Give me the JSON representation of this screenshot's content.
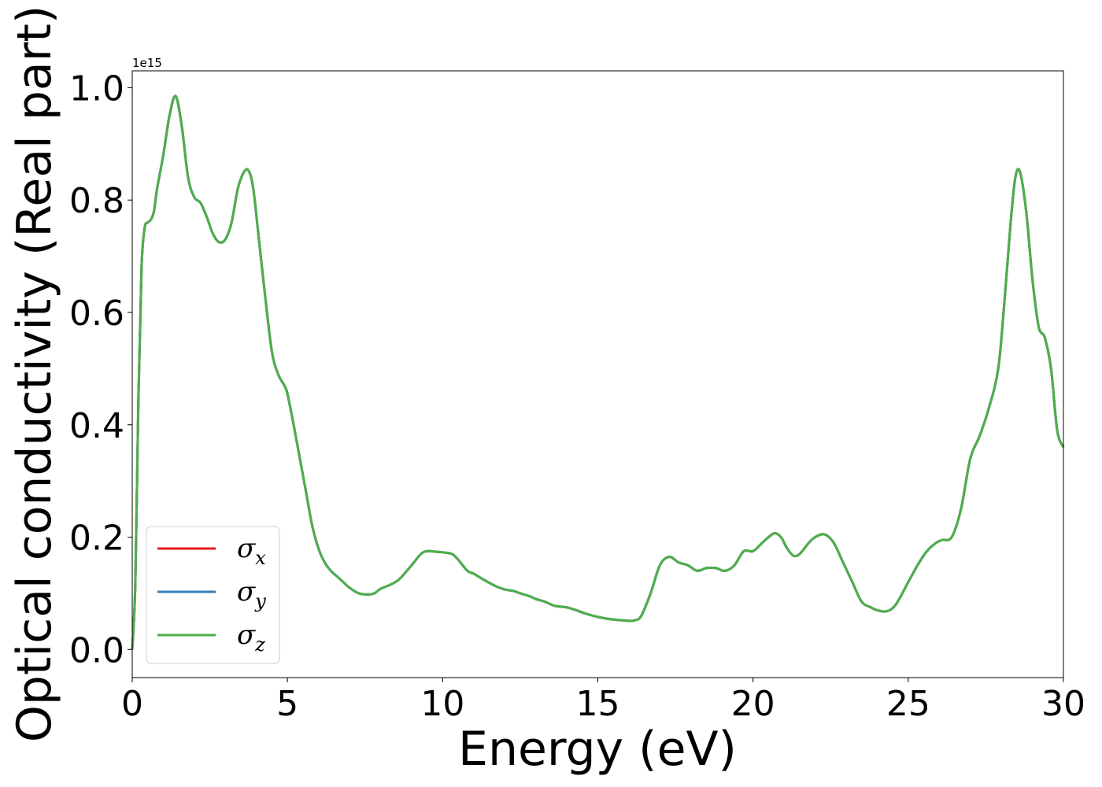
{
  "chart_data": {
    "type": "line",
    "xlabel": "Energy (eV)",
    "ylabel": "Optical conductivity (Real part)",
    "y_multiplier_label": "1e15",
    "xlim": [
      0,
      30
    ],
    "ylim": [
      -0.05,
      1.03
    ],
    "x_ticks": [
      0,
      5,
      10,
      15,
      20,
      25,
      30
    ],
    "x_tick_labels": [
      "0",
      "5",
      "10",
      "15",
      "20",
      "25",
      "30"
    ],
    "y_ticks": [
      0.0,
      0.2,
      0.4,
      0.6,
      0.8,
      1.0
    ],
    "y_tick_labels": [
      "0.0",
      "0.2",
      "0.4",
      "0.6",
      "0.8",
      "1.0"
    ],
    "grid": false,
    "legend_position": "lower-left",
    "x": [
      0,
      0.1,
      0.2,
      0.3,
      0.4,
      0.5,
      0.6,
      0.7,
      0.8,
      1.0,
      1.2,
      1.4,
      1.6,
      1.8,
      2.0,
      2.2,
      2.4,
      2.6,
      2.8,
      3.0,
      3.2,
      3.4,
      3.6,
      3.75,
      3.9,
      4.1,
      4.3,
      4.5,
      4.7,
      4.9,
      5.0,
      5.2,
      5.4,
      5.6,
      5.8,
      6.0,
      6.2,
      6.4,
      6.6,
      6.8,
      7.0,
      7.3,
      7.6,
      7.8,
      8.0,
      8.3,
      8.6,
      9.0,
      9.3,
      9.5,
      9.8,
      10.0,
      10.3,
      10.5,
      10.8,
      11.0,
      11.3,
      11.7,
      12.0,
      12.3,
      12.5,
      12.8,
      13.0,
      13.3,
      13.6,
      14.0,
      14.3,
      14.6,
      15.0,
      15.4,
      15.8,
      16.0,
      16.2,
      16.4,
      16.7,
      17.0,
      17.3,
      17.6,
      17.9,
      18.2,
      18.5,
      18.8,
      19.1,
      19.4,
      19.7,
      20.0,
      20.3,
      20.5,
      20.7,
      20.9,
      21.1,
      21.3,
      21.5,
      21.8,
      22.0,
      22.3,
      22.6,
      22.9,
      23.2,
      23.5,
      23.8,
      24.0,
      24.3,
      24.6,
      25.0,
      25.3,
      25.6,
      25.9,
      26.1,
      26.4,
      26.7,
      27.0,
      27.3,
      27.6,
      27.9,
      28.1,
      28.3,
      28.45,
      28.6,
      28.8,
      29.0,
      29.2,
      29.4,
      29.6,
      29.8,
      30.0
    ],
    "series": [
      {
        "name": "σx",
        "color": "#e41a1c",
        "values": [
          0.0,
          0.12,
          0.45,
          0.68,
          0.75,
          0.76,
          0.765,
          0.78,
          0.82,
          0.88,
          0.95,
          0.985,
          0.93,
          0.84,
          0.805,
          0.795,
          0.77,
          0.74,
          0.725,
          0.73,
          0.76,
          0.82,
          0.85,
          0.852,
          0.82,
          0.72,
          0.62,
          0.53,
          0.49,
          0.47,
          0.455,
          0.4,
          0.34,
          0.28,
          0.22,
          0.18,
          0.155,
          0.14,
          0.13,
          0.12,
          0.11,
          0.1,
          0.098,
          0.1,
          0.108,
          0.115,
          0.125,
          0.15,
          0.17,
          0.175,
          0.174,
          0.173,
          0.17,
          0.16,
          0.14,
          0.135,
          0.125,
          0.113,
          0.107,
          0.104,
          0.1,
          0.095,
          0.09,
          0.085,
          0.078,
          0.075,
          0.07,
          0.064,
          0.058,
          0.054,
          0.052,
          0.051,
          0.052,
          0.06,
          0.1,
          0.15,
          0.165,
          0.155,
          0.15,
          0.14,
          0.145,
          0.145,
          0.14,
          0.15,
          0.175,
          0.175,
          0.19,
          0.2,
          0.207,
          0.2,
          0.18,
          0.167,
          0.17,
          0.19,
          0.2,
          0.205,
          0.19,
          0.155,
          0.12,
          0.085,
          0.075,
          0.07,
          0.068,
          0.08,
          0.12,
          0.15,
          0.175,
          0.19,
          0.195,
          0.2,
          0.25,
          0.34,
          0.38,
          0.43,
          0.5,
          0.62,
          0.76,
          0.84,
          0.85,
          0.78,
          0.66,
          0.575,
          0.555,
          0.5,
          0.39,
          0.36
        ]
      },
      {
        "name": "σy",
        "color": "#377eb8",
        "values": [
          0.0,
          0.12,
          0.45,
          0.68,
          0.75,
          0.76,
          0.765,
          0.78,
          0.82,
          0.88,
          0.95,
          0.985,
          0.93,
          0.84,
          0.805,
          0.795,
          0.77,
          0.74,
          0.725,
          0.73,
          0.76,
          0.82,
          0.85,
          0.852,
          0.82,
          0.72,
          0.62,
          0.53,
          0.49,
          0.47,
          0.455,
          0.4,
          0.34,
          0.28,
          0.22,
          0.18,
          0.155,
          0.14,
          0.13,
          0.12,
          0.11,
          0.1,
          0.098,
          0.1,
          0.108,
          0.115,
          0.125,
          0.15,
          0.17,
          0.175,
          0.174,
          0.173,
          0.17,
          0.16,
          0.14,
          0.135,
          0.125,
          0.113,
          0.107,
          0.104,
          0.1,
          0.095,
          0.09,
          0.085,
          0.078,
          0.075,
          0.07,
          0.064,
          0.058,
          0.054,
          0.052,
          0.051,
          0.052,
          0.06,
          0.1,
          0.15,
          0.165,
          0.155,
          0.15,
          0.14,
          0.145,
          0.145,
          0.14,
          0.15,
          0.175,
          0.175,
          0.19,
          0.2,
          0.207,
          0.2,
          0.18,
          0.167,
          0.17,
          0.19,
          0.2,
          0.205,
          0.19,
          0.155,
          0.12,
          0.085,
          0.075,
          0.07,
          0.068,
          0.08,
          0.12,
          0.15,
          0.175,
          0.19,
          0.195,
          0.2,
          0.25,
          0.34,
          0.38,
          0.43,
          0.5,
          0.62,
          0.76,
          0.84,
          0.85,
          0.78,
          0.66,
          0.575,
          0.555,
          0.5,
          0.39,
          0.36
        ]
      },
      {
        "name": "σz",
        "color": "#4daf4a",
        "values": [
          0.0,
          0.12,
          0.45,
          0.68,
          0.75,
          0.76,
          0.765,
          0.78,
          0.82,
          0.88,
          0.95,
          0.985,
          0.93,
          0.84,
          0.805,
          0.795,
          0.77,
          0.74,
          0.725,
          0.73,
          0.76,
          0.82,
          0.85,
          0.852,
          0.82,
          0.72,
          0.62,
          0.53,
          0.49,
          0.47,
          0.455,
          0.4,
          0.34,
          0.28,
          0.22,
          0.18,
          0.155,
          0.14,
          0.13,
          0.12,
          0.11,
          0.1,
          0.098,
          0.1,
          0.108,
          0.115,
          0.125,
          0.15,
          0.17,
          0.175,
          0.174,
          0.173,
          0.17,
          0.16,
          0.14,
          0.135,
          0.125,
          0.113,
          0.107,
          0.104,
          0.1,
          0.095,
          0.09,
          0.085,
          0.078,
          0.075,
          0.07,
          0.064,
          0.058,
          0.054,
          0.052,
          0.051,
          0.052,
          0.06,
          0.1,
          0.15,
          0.165,
          0.155,
          0.15,
          0.14,
          0.145,
          0.145,
          0.14,
          0.15,
          0.175,
          0.175,
          0.19,
          0.2,
          0.207,
          0.2,
          0.18,
          0.167,
          0.17,
          0.19,
          0.2,
          0.205,
          0.19,
          0.155,
          0.12,
          0.085,
          0.075,
          0.07,
          0.068,
          0.08,
          0.12,
          0.15,
          0.175,
          0.19,
          0.195,
          0.2,
          0.25,
          0.34,
          0.38,
          0.43,
          0.5,
          0.62,
          0.76,
          0.84,
          0.85,
          0.78,
          0.66,
          0.575,
          0.555,
          0.5,
          0.39,
          0.36
        ]
      }
    ],
    "legend": [
      {
        "symbol": "σ",
        "subscript": "x",
        "color": "#e41a1c"
      },
      {
        "symbol": "σ",
        "subscript": "y",
        "color": "#377eb8"
      },
      {
        "symbol": "σ",
        "subscript": "z",
        "color": "#4daf4a"
      }
    ]
  }
}
